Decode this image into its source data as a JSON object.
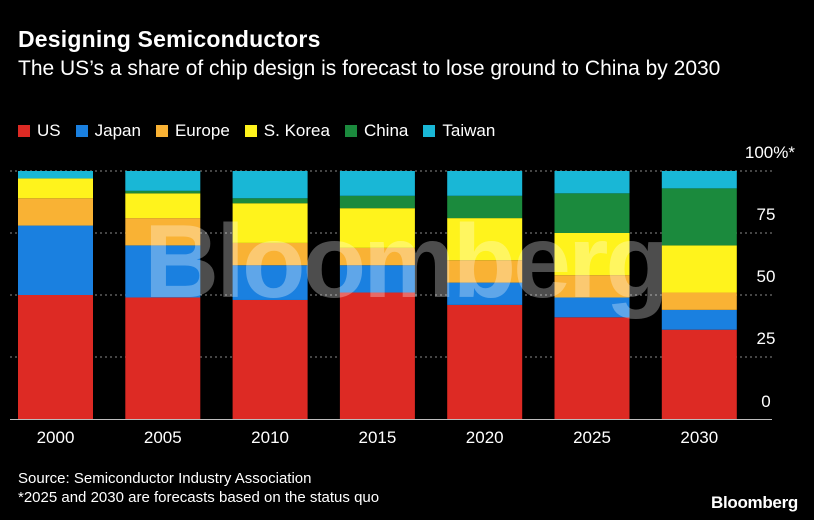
{
  "chart_data": {
    "type": "bar",
    "stacked": true,
    "title": "Designing Semiconductors",
    "subtitle": "The US’s a share of chip design is forecast to lose ground to China by 2030",
    "categories": [
      "2000",
      "2005",
      "2010",
      "2015",
      "2020",
      "2025",
      "2030"
    ],
    "series": [
      {
        "name": "US",
        "color": "#dd2a24",
        "values": [
          50,
          49,
          48,
          51,
          46,
          41,
          36
        ]
      },
      {
        "name": "Japan",
        "color": "#1a80e0",
        "values": [
          28,
          21,
          14,
          11,
          9,
          8,
          8
        ]
      },
      {
        "name": "Europe",
        "color": "#f9b234",
        "values": [
          11,
          11,
          9,
          7,
          9,
          9,
          7
        ]
      },
      {
        "name": "S. Korea",
        "color": "#fff31c",
        "values": [
          8,
          10,
          16,
          16,
          17,
          17,
          19
        ]
      },
      {
        "name": "China",
        "color": "#1b8a3d",
        "values": [
          0,
          1,
          2,
          5,
          9,
          16,
          23
        ]
      },
      {
        "name": "Taiwan",
        "color": "#19b7d6",
        "values": [
          3,
          8,
          11,
          10,
          10,
          9,
          7
        ]
      }
    ],
    "ylim": [
      0,
      100
    ],
    "yticks": [
      {
        "value": 0,
        "label": "0"
      },
      {
        "value": 25,
        "label": "25"
      },
      {
        "value": 50,
        "label": "50"
      },
      {
        "value": 75,
        "label": "75"
      },
      {
        "value": 100,
        "label": "100%*"
      }
    ],
    "y_axis_side": "right",
    "grid": true,
    "legend_position": "top-left",
    "watermark": "Bloomberg",
    "source": "Source: Semiconductor Industry Association",
    "note": "*2025 and 2030 are forecasts based on the status quo",
    "brand": "Bloomberg"
  }
}
